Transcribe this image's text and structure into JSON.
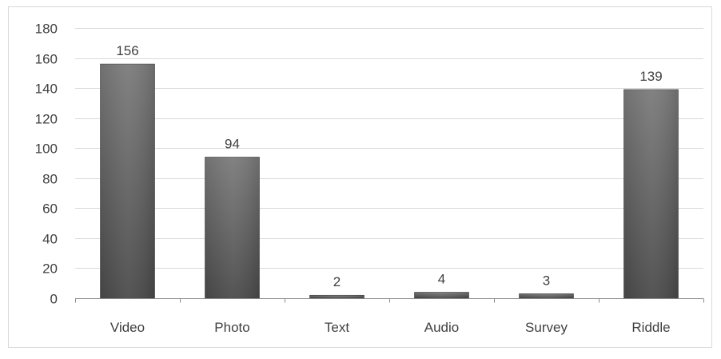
{
  "chart_data": {
    "type": "bar",
    "title": "",
    "xlabel": "",
    "ylabel": "",
    "categories": [
      "Video",
      "Photo",
      "Text",
      "Audio",
      "Survey",
      "Riddle"
    ],
    "values": [
      156,
      94,
      2,
      4,
      3,
      139
    ],
    "data_labels": [
      "156",
      "94",
      "2",
      "4",
      "3",
      "139"
    ],
    "ylim": [
      0,
      180
    ],
    "yticks": [
      0,
      20,
      40,
      60,
      80,
      100,
      120,
      140,
      160,
      180
    ],
    "ytick_labels": [
      "0",
      "20",
      "40",
      "60",
      "80",
      "100",
      "120",
      "140",
      "160",
      "180"
    ],
    "grid": true,
    "legend": "none",
    "colors": {
      "bar_top": "#7a7a7a",
      "bar_bottom": "#4a4a4a",
      "grid": "#d9d9d9",
      "axis": "#8c8c8c",
      "text": "#404040",
      "border": "#d9d9d9"
    }
  }
}
